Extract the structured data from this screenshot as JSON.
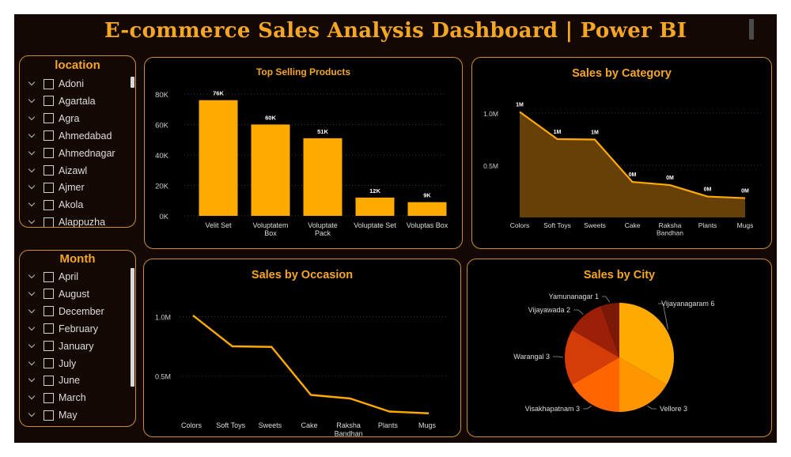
{
  "header": {
    "title": "E-commerce Sales Analysis Dashboard | Power BI"
  },
  "location_slicer": {
    "title": "location",
    "items": [
      "Adoni",
      "Agartala",
      "Agra",
      "Ahmedabad",
      "Ahmednagar",
      "Aizawl",
      "Ajmer",
      "Akola",
      "Alappuzha"
    ]
  },
  "month_slicer": {
    "title": "Month",
    "items": [
      "April",
      "August",
      "December",
      "February",
      "January",
      "July",
      "June",
      "March",
      "May"
    ]
  },
  "colors": {
    "accent": "#F5A623",
    "bar": "#FFAA00",
    "area_fill": "#6B4306",
    "background": "#140805"
  },
  "chart_data": [
    {
      "id": "top_selling",
      "type": "bar",
      "title": "Top Selling Products",
      "categories": [
        "Velit Set",
        "Voluptatem Box",
        "Voluptate Pack",
        "Voluptate Set",
        "Voluptas Box"
      ],
      "category_lines": [
        [
          "Velit Set"
        ],
        [
          "Voluptatem",
          "Box"
        ],
        [
          "Voluptate",
          "Pack"
        ],
        [
          "Voluptate Set"
        ],
        [
          "Voluptas Box"
        ]
      ],
      "values": [
        76000,
        60000,
        51000,
        12000,
        9000
      ],
      "data_labels": [
        "76K",
        "60K",
        "51K",
        "12K",
        "9K"
      ],
      "ylim": [
        0,
        80000
      ],
      "yticks": [
        0,
        20000,
        40000,
        60000,
        80000
      ],
      "ytick_labels": [
        "0K",
        "20K",
        "40K",
        "60K",
        "80K"
      ],
      "grid": true
    },
    {
      "id": "by_category",
      "type": "area",
      "title": "Sales by Category",
      "categories": [
        "Colors",
        "Soft Toys",
        "Sweets",
        "Cake",
        "Raksha Bandhan",
        "Plants",
        "Mugs"
      ],
      "category_lines": [
        [
          "Colors"
        ],
        [
          "Soft Toys"
        ],
        [
          "Sweets"
        ],
        [
          "Cake"
        ],
        [
          "Raksha",
          "Bandhan"
        ],
        [
          "Plants"
        ],
        [
          "Mugs"
        ]
      ],
      "values": [
        1010000,
        750000,
        745000,
        340000,
        310000,
        200000,
        185000
      ],
      "data_labels": [
        "1M",
        "1M",
        "1M",
        "0M",
        "0M",
        "0M",
        "0M"
      ],
      "ylim": [
        0,
        1150000
      ],
      "yticks": [
        500000,
        1000000
      ],
      "ytick_labels": [
        "0.5M",
        "1.0M"
      ],
      "grid": true
    },
    {
      "id": "by_occasion",
      "type": "line",
      "title": "Sales by Occasion",
      "categories": [
        "Colors",
        "Soft Toys",
        "Sweets",
        "Cake",
        "Raksha Bandhan",
        "Plants",
        "Mugs"
      ],
      "category_lines": [
        [
          "Colors"
        ],
        [
          "Soft Toys"
        ],
        [
          "Sweets"
        ],
        [
          "Cake"
        ],
        [
          "Raksha",
          "Bandhan"
        ],
        [
          "Plants"
        ],
        [
          "Mugs"
        ]
      ],
      "values": [
        1010000,
        750000,
        745000,
        340000,
        310000,
        200000,
        185000
      ],
      "ylim": [
        150000,
        1150000
      ],
      "yticks": [
        500000,
        1000000
      ],
      "ytick_labels": [
        "0.5M",
        "1.0M"
      ],
      "grid": true
    },
    {
      "id": "by_city",
      "type": "pie",
      "title": "Sales by City",
      "slices": [
        {
          "label": "Vijayanagaram 6",
          "value": 6,
          "color": "#FFAA00"
        },
        {
          "label": "Vellore 3",
          "value": 3,
          "color": "#FF9500"
        },
        {
          "label": "Visakhapatnam 3",
          "value": 3,
          "color": "#FF6500"
        },
        {
          "label": "Warangal 3",
          "value": 3,
          "color": "#D43D08"
        },
        {
          "label": "Vijayawada 2",
          "value": 2,
          "color": "#9C1F08"
        },
        {
          "label": "Yamunanagar 1",
          "value": 1,
          "color": "#7A1906"
        }
      ]
    }
  ]
}
